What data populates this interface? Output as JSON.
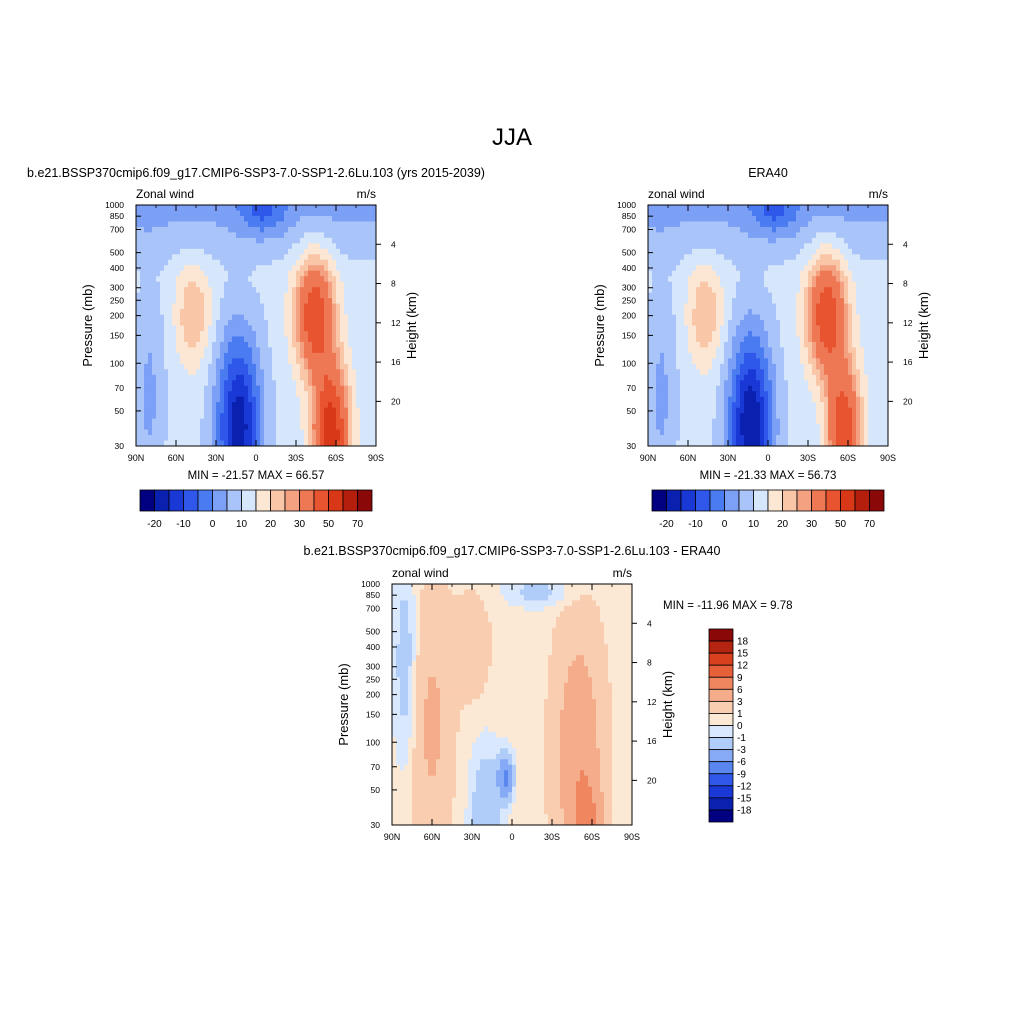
{
  "figure_title": "JJA",
  "colors": {
    "model_obs_levels": [
      "#000080",
      "#0a21b0",
      "#1938d6",
      "#2f58ea",
      "#4a7bf0",
      "#7ba0f5",
      "#a8c4f8",
      "#d6e6fb",
      "#fbe7d3",
      "#f9c6a8",
      "#f4a181",
      "#ee7754",
      "#e85430",
      "#d83818",
      "#b41e0c",
      "#8a0808"
    ],
    "diff_levels": [
      "#000080",
      "#0a21b0",
      "#1938d6",
      "#2f58ea",
      "#5a86f0",
      "#86aaf5",
      "#b0ccf9",
      "#d9e8fc",
      "#fbe8d5",
      "#f9cdb0",
      "#f5ac8a",
      "#ef8660",
      "#e8603a",
      "#d8401e",
      "#b42410",
      "#8a0808"
    ]
  },
  "chart_data": [
    {
      "type": "heatmap",
      "title": "b.e21.BSSP370cmip6.f09_g17.CMIP6-SSP3-7.0-SSP1-2.6Lu.103 (yrs 2015-2039)",
      "left_label": "Zonal wind",
      "right_label": "m/s",
      "ylabel": "Pressure (mb)",
      "ylabel_right": "Height (km)",
      "xticks": [
        "90N",
        "60N",
        "30N",
        "0",
        "30S",
        "60S",
        "90S"
      ],
      "yticks": [
        "30",
        "50",
        "70",
        "100",
        "150",
        "200",
        "250",
        "300",
        "400",
        "500",
        "700",
        "850",
        "1000"
      ],
      "yticks_right": [
        "20",
        "16",
        "12",
        "8",
        "4"
      ],
      "x_range": [
        90,
        -90
      ],
      "y_range": [
        1000,
        30
      ],
      "y_scale": "log",
      "stats": "MIN = -21.57  MAX =  66.57",
      "levels": [
        -20,
        -15,
        -10,
        -5,
        0,
        5,
        10,
        15,
        20,
        25,
        30,
        40,
        50,
        60,
        70
      ],
      "colorbar_labels": [
        "-20",
        "-10",
        "0",
        "10",
        "20",
        "30",
        "50",
        "70"
      ],
      "min": -21.57,
      "max": 66.57
    },
    {
      "type": "heatmap",
      "title": "ERA40",
      "left_label": "zonal wind",
      "right_label": "m/s",
      "ylabel": "Pressure (mb)",
      "ylabel_right": "Height (km)",
      "xticks": [
        "90N",
        "60N",
        "30N",
        "0",
        "30S",
        "60S",
        "90S"
      ],
      "yticks": [
        "30",
        "50",
        "70",
        "100",
        "150",
        "200",
        "250",
        "300",
        "400",
        "500",
        "700",
        "850",
        "1000"
      ],
      "yticks_right": [
        "20",
        "16",
        "12",
        "8",
        "4"
      ],
      "x_range": [
        90,
        -90
      ],
      "y_range": [
        1000,
        30
      ],
      "y_scale": "log",
      "stats": "MIN = -21.33  MAX =  56.73",
      "levels": [
        -20,
        -15,
        -10,
        -5,
        0,
        5,
        10,
        15,
        20,
        25,
        30,
        40,
        50,
        60,
        70
      ],
      "colorbar_labels": [
        "-20",
        "-10",
        "0",
        "10",
        "20",
        "30",
        "50",
        "70"
      ],
      "min": -21.33,
      "max": 56.73
    },
    {
      "type": "heatmap",
      "title": "b.e21.BSSP370cmip6.f09_g17.CMIP6-SSP3-7.0-SSP1-2.6Lu.103 - ERA40",
      "left_label": "zonal wind",
      "right_label": "m/s",
      "ylabel": "Pressure (mb)",
      "ylabel_right": "Height (km)",
      "xticks": [
        "90N",
        "60N",
        "30N",
        "0",
        "30S",
        "60S",
        "90S"
      ],
      "yticks": [
        "30",
        "50",
        "70",
        "100",
        "150",
        "200",
        "250",
        "300",
        "400",
        "500",
        "700",
        "850",
        "1000"
      ],
      "yticks_right": [
        "20",
        "16",
        "12",
        "8",
        "4"
      ],
      "x_range": [
        90,
        -90
      ],
      "y_range": [
        1000,
        30
      ],
      "y_scale": "log",
      "stats": "MIN = -11.96  MAX =   9.78",
      "levels": [
        -18,
        -15,
        -12,
        -9,
        -6,
        -3,
        -1,
        0,
        1,
        3,
        6,
        9,
        12,
        15,
        18
      ],
      "colorbar_labels": [
        "18",
        "15",
        "12",
        "9",
        "6",
        "3",
        "1",
        "0",
        "-1",
        "-3",
        "-6",
        "-9",
        "-12",
        "-15",
        "-18"
      ],
      "min": -11.96,
      "max": 9.78
    }
  ]
}
